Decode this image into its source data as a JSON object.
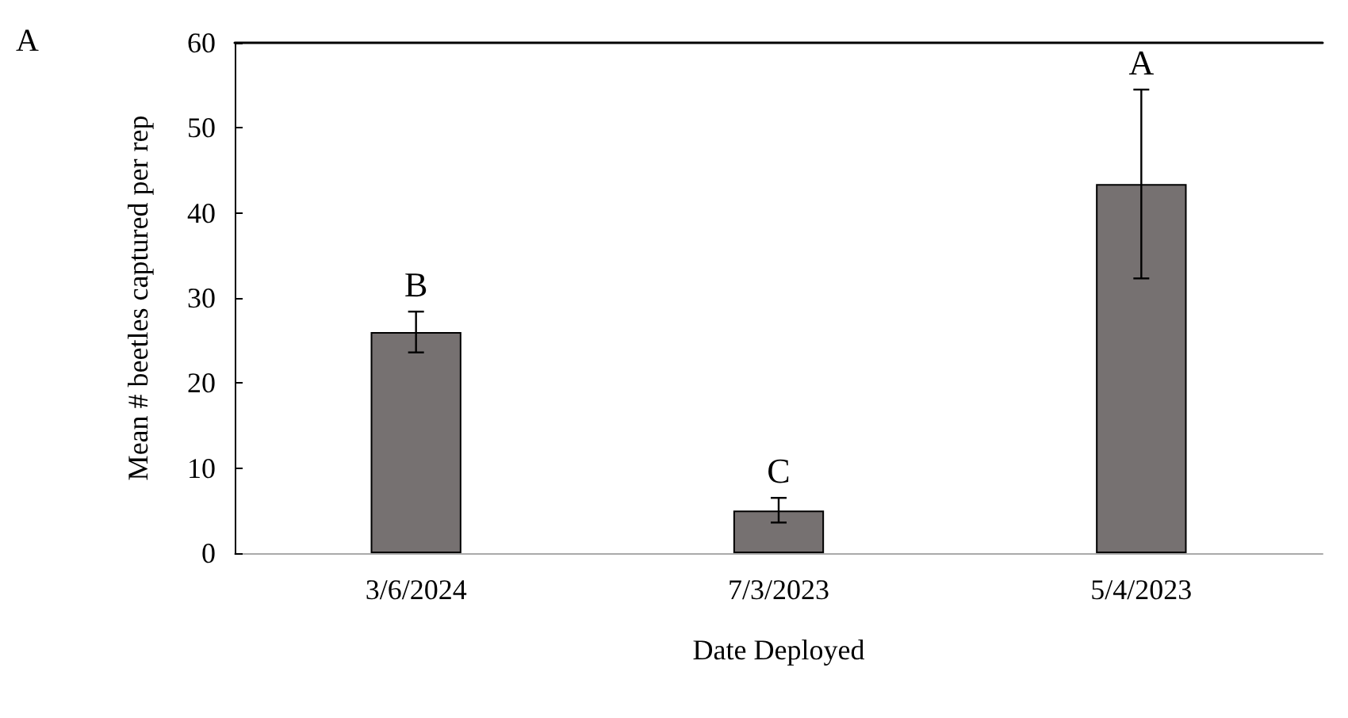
{
  "chart_data": {
    "type": "bar",
    "xlabel": "Date Deployed",
    "ylabel": "Mean # beetles captured per rep",
    "categories": [
      "3/6/2024",
      "7/3/2023",
      "5/4/2023"
    ],
    "values": [
      26,
      5,
      43.4
    ],
    "color": "#767171",
    "errors": [
      [
        23.6,
        28.4
      ],
      [
        3.6,
        6.5
      ],
      [
        32.3,
        54.5
      ]
    ],
    "ylim": [
      0,
      60
    ],
    "yticks": [
      0,
      10,
      20,
      30,
      40,
      50,
      60
    ],
    "grid": false,
    "annotations": [
      "A",
      {
        "text": "B",
        "x": "3/6/2024",
        "y": 28.4
      },
      {
        "text": "C",
        "x": "7/3/2023",
        "y": 6.5
      },
      {
        "text": "A",
        "x": "5/4/2023",
        "y": 54.5
      }
    ]
  }
}
